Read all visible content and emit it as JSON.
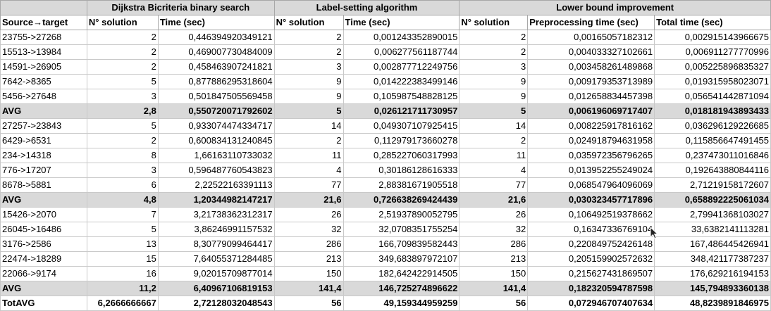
{
  "groups": [
    "",
    "Dijkstra Bicriteria binary search",
    "Label-setting algorithm",
    "Lower bound improvement"
  ],
  "headers": [
    "Source→target",
    "N° solution",
    "Time (sec)",
    "N° solution",
    "Time (sec)",
    "N° solution",
    "Preprocessing time (sec)",
    "Total time (sec)"
  ],
  "rows": [
    {
      "type": "data",
      "cells": [
        "23755->27268",
        "2",
        "0,446394920349121",
        "2",
        "0,001243352890015",
        "2",
        "0,00165057182312",
        "0,002915143966675"
      ]
    },
    {
      "type": "data",
      "cells": [
        "15513->13984",
        "2",
        "0,469007730484009",
        "2",
        "0,006277561187744",
        "2",
        "0,004033327102661",
        "0,006911277770996"
      ]
    },
    {
      "type": "data",
      "cells": [
        "14591->26905",
        "2",
        "0,458463907241821",
        "3",
        "0,002877712249756",
        "3",
        "0,003458261489868",
        "0,005225896835327"
      ]
    },
    {
      "type": "data",
      "cells": [
        "7642->8365",
        "5",
        "0,877886295318604",
        "9",
        "0,014222383499146",
        "9",
        "0,009179353713989",
        "0,019315958023071"
      ]
    },
    {
      "type": "data",
      "cells": [
        "5456->27648",
        "3",
        "0,501847505569458",
        "9",
        "0,105987548828125",
        "9",
        "0,012658834457398",
        "0,056541442871094"
      ]
    },
    {
      "type": "avg",
      "cells": [
        "AVG",
        "2,8",
        "0,550720071792602",
        "5",
        "0,026121711730957",
        "5",
        "0,006196069717407",
        "0,018181943893433"
      ]
    },
    {
      "type": "data",
      "cells": [
        "27257->23843",
        "5",
        "0,933074474334717",
        "14",
        "0,049307107925415",
        "14",
        "0,008225917816162",
        "0,036296129226685"
      ]
    },
    {
      "type": "data",
      "cells": [
        "6429->6531",
        "2",
        "0,600834131240845",
        "2",
        "0,112979173660278",
        "2",
        "0,024918794631958",
        "0,115856647491455"
      ]
    },
    {
      "type": "data",
      "cells": [
        "234->14318",
        "8",
        "1,66163110733032",
        "11",
        "0,285227060317993",
        "11",
        "0,035972356796265",
        "0,237473011016846"
      ]
    },
    {
      "type": "data",
      "cells": [
        "776->17207",
        "3",
        "0,596487760543823",
        "4",
        "0,30186128616333",
        "4",
        "0,013952255249024",
        "0,192643880844116"
      ]
    },
    {
      "type": "data",
      "cells": [
        "8678->5881",
        "6",
        "2,22522163391113",
        "77",
        "2,88381671905518",
        "77",
        "0,068547964096069",
        "2,71219158172607"
      ]
    },
    {
      "type": "avg",
      "cells": [
        "AVG",
        "4,8",
        "1,20344982147217",
        "21,6",
        "0,726638269424439",
        "21,6",
        "0,030323457717896",
        "0,658892225061034"
      ]
    },
    {
      "type": "data",
      "cells": [
        "15426->2070",
        "7",
        "3,21738362312317",
        "26",
        "2,51937890052795",
        "26",
        "0,106492519378662",
        "2,79941368103027"
      ]
    },
    {
      "type": "data",
      "cells": [
        "26045->16486",
        "5",
        "3,86246991157532",
        "32",
        "32,0708351755254",
        "32",
        "0,16347336769104",
        "33,6382141113281"
      ]
    },
    {
      "type": "data",
      "cells": [
        "3176->2586",
        "13",
        "8,30779099464417",
        "286",
        "166,709839582443",
        "286",
        "0,220849752426148",
        "167,486445426941"
      ]
    },
    {
      "type": "data",
      "cells": [
        "22474->18289",
        "15",
        "7,64055371284485",
        "213",
        "349,683897972107",
        "213",
        "0,205159902572632",
        "348,421177387237"
      ]
    },
    {
      "type": "data",
      "cells": [
        "22066->9174",
        "16",
        "9,02015709877014",
        "150",
        "182,642422914505",
        "150",
        "0,215627431869507",
        "176,629216194153"
      ]
    },
    {
      "type": "avg",
      "cells": [
        "AVG",
        "11,2",
        "6,40967106819153",
        "141,4",
        "146,725274896622",
        "141,4",
        "0,182320594787598",
        "145,794893360138"
      ]
    },
    {
      "type": "total",
      "cells": [
        "TotAVG",
        "6,2666666667",
        "2,72128032048543",
        "56",
        "49,159344959259",
        "56",
        "0,072946707407634",
        "48,8239891846975"
      ]
    }
  ],
  "cursor": {
    "icon": "mouse-pointer-icon"
  }
}
